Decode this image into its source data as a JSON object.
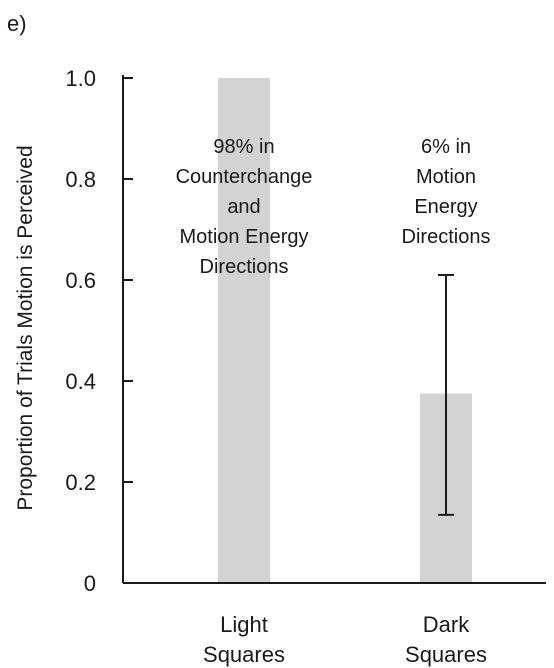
{
  "panel_label": "e)",
  "chart_data": {
    "type": "bar",
    "title": "",
    "xlabel": "",
    "ylabel": "Proportion of Trials Motion is Perceived",
    "ylim": [
      0,
      1.0
    ],
    "yticks": [
      "0",
      "0.2",
      "0.4",
      "0.6",
      "0.8",
      "1.0"
    ],
    "categories": [
      [
        "Light",
        "Squares"
      ],
      [
        "Dark",
        "Squares"
      ]
    ],
    "values": [
      1.0,
      0.375
    ],
    "error_bars": [
      null,
      {
        "low": 0.135,
        "high": 0.61
      }
    ],
    "annotations": [
      [
        "98% in",
        "Counterchange",
        "and",
        "Motion Energy",
        "Directions"
      ],
      [
        "6% in",
        "Motion",
        "Energy",
        "Directions"
      ]
    ],
    "bar_color": "#d3d3d3",
    "grid": false
  }
}
